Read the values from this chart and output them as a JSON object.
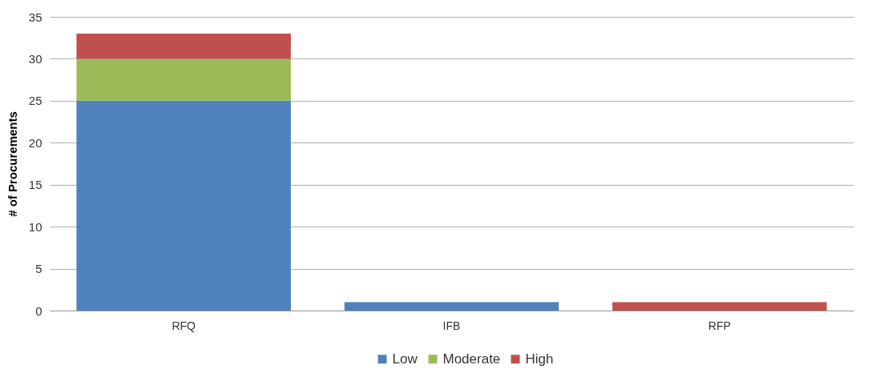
{
  "chart_data": {
    "type": "bar",
    "stacked": true,
    "ylabel": "# of Procurements",
    "categories": [
      "RFQ",
      "IFB",
      "RFP"
    ],
    "series": [
      {
        "name": "Low",
        "color": "#4f81bd",
        "values": [
          25,
          1,
          0
        ]
      },
      {
        "name": "Moderate",
        "color": "#9bbb59",
        "values": [
          5,
          0,
          0
        ]
      },
      {
        "name": "High",
        "color": "#c0504d",
        "values": [
          3,
          0,
          1
        ]
      }
    ],
    "ylim": [
      0,
      35
    ],
    "yticks": [
      0,
      5,
      10,
      15,
      20,
      25,
      30,
      35
    ],
    "grid": "y",
    "legend": "bottom"
  }
}
